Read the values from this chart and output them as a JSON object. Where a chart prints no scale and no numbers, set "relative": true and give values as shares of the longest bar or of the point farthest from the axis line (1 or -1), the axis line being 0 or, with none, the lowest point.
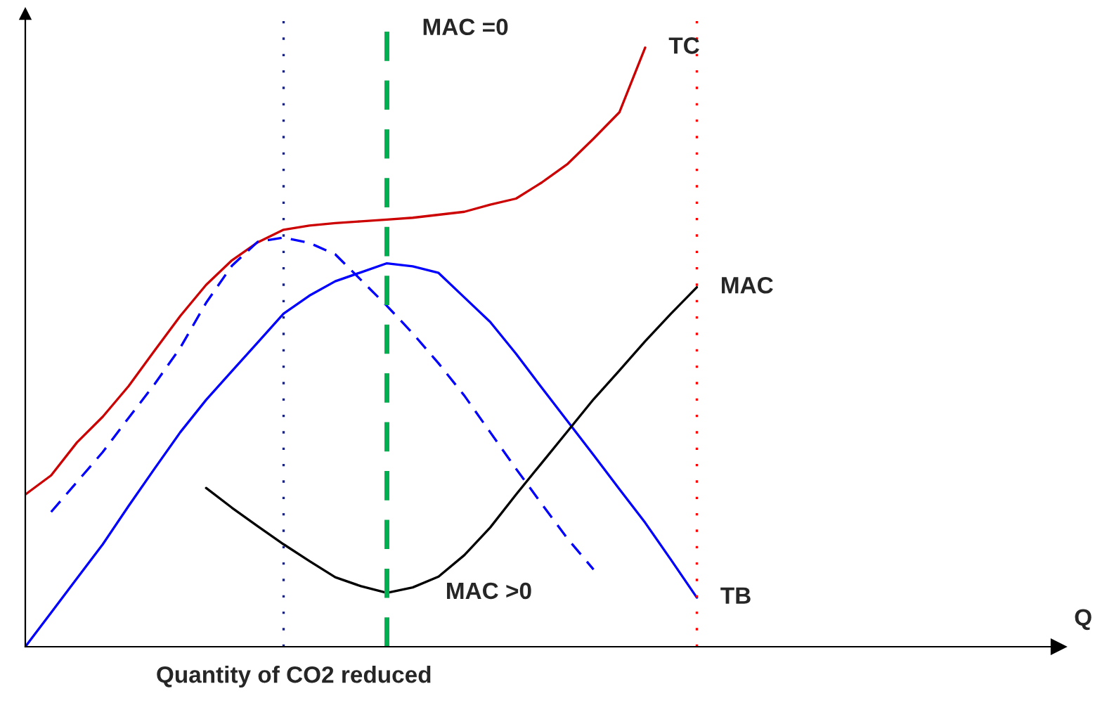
{
  "chart_data": {
    "type": "line",
    "relative": true,
    "xlabel": "Quantity of CO2 reduced",
    "categories": [
      null,
      null,
      null,
      null,
      null,
      null,
      null,
      null,
      null,
      null,
      null,
      null,
      null,
      null,
      null,
      null,
      null,
      null,
      null,
      null,
      null,
      null,
      null,
      null,
      null,
      null,
      null
    ],
    "series": [
      {
        "name": "TC",
        "color": "#cc0000",
        "line_style": "solid",
        "values": [
          0.254,
          0.286,
          0.341,
          0.384,
          0.435,
          0.494,
          0.552,
          0.604,
          0.645,
          0.675,
          0.696,
          0.703,
          0.707,
          0.71,
          0.713,
          0.716,
          0.721,
          0.726,
          0.738,
          0.748,
          0.775,
          0.806,
          0.848,
          0.892,
          1,
          null,
          null
        ]
      },
      {
        "color": "#0000ff",
        "line_style": "dashed",
        "values": [
          null,
          0.225,
          0.275,
          0.325,
          0.382,
          0.438,
          0.499,
          0.574,
          0.636,
          0.676,
          0.683,
          0.674,
          0.655,
          0.612,
          0.569,
          0.523,
          0.473,
          0.419,
          0.358,
          0.297,
          0.238,
          0.18,
          0.129,
          null,
          null,
          null,
          null
        ]
      },
      {
        "name": "TB",
        "color": "#0000ff",
        "line_style": "solid",
        "values": [
          0,
          0.057,
          0.114,
          0.171,
          0.235,
          0.297,
          0.358,
          0.412,
          0.46,
          0.508,
          0.556,
          0.586,
          0.61,
          0.625,
          0.64,
          0.635,
          0.624,
          0.583,
          0.542,
          0.489,
          0.432,
          0.376,
          0.32,
          0.263,
          0.207,
          0.145,
          0.082
        ]
      },
      {
        "name": "MAC",
        "color": "#000000",
        "line_style": "solid",
        "values": [
          null,
          null,
          null,
          null,
          null,
          null,
          null,
          0.265,
          0.232,
          0.201,
          0.171,
          0.143,
          0.116,
          0.101,
          0.09,
          0.099,
          0.117,
          0.153,
          0.199,
          0.254,
          0.307,
          0.36,
          0.413,
          0.461,
          0.51,
          0.556,
          0.6
        ]
      }
    ],
    "annotations": [
      "MAC >0",
      "Q",
      "MAC =0"
    ]
  }
}
